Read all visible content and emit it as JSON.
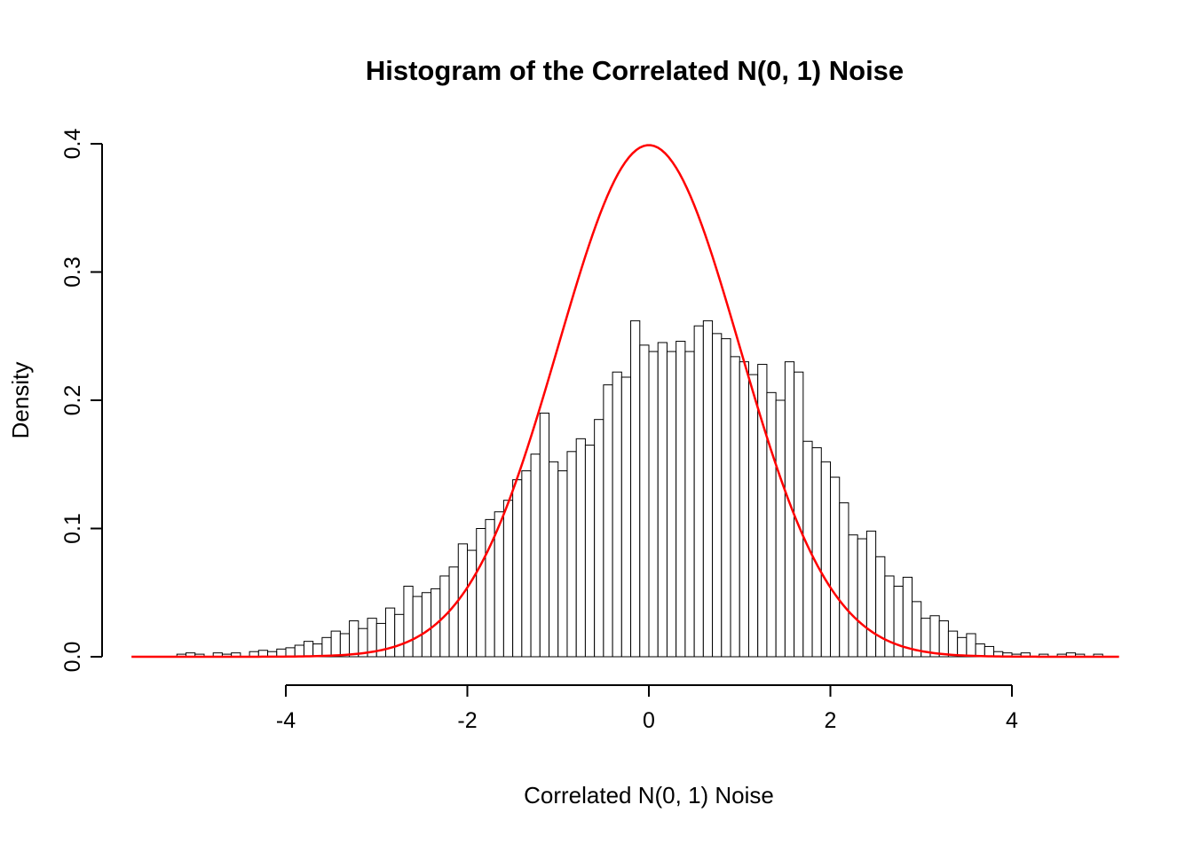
{
  "page": {
    "background_color": "#FFFFFF"
  },
  "chart_data": {
    "type": "bar",
    "subtype": "histogram-with-density-overlay",
    "title": "Histogram of the Correlated N(0, 1) Noise",
    "xlabel": "Correlated N(0, 1) Noise",
    "ylabel": "Density",
    "xlim": [
      -5.5,
      5.5
    ],
    "ylim": [
      0.0,
      0.4
    ],
    "x_ticks": [
      -4,
      -2,
      0,
      2,
      4
    ],
    "x_tick_labels": [
      "-4",
      "-2",
      "0",
      "2",
      "4"
    ],
    "y_ticks": [
      0.0,
      0.1,
      0.2,
      0.3,
      0.4
    ],
    "y_tick_labels": [
      "0.0",
      "0.1",
      "0.2",
      "0.3",
      "0.4"
    ],
    "grid": "off",
    "legend": "none",
    "bar_fill_color": "#FFFFFF",
    "bar_stroke_color": "#000000",
    "bin_width": 0.1,
    "bin_start": -5.2,
    "bin_densities": [
      0.002,
      0.003,
      0.002,
      0.0,
      0.003,
      0.002,
      0.003,
      0.0,
      0.004,
      0.005,
      0.004,
      0.006,
      0.007,
      0.009,
      0.012,
      0.01,
      0.015,
      0.02,
      0.018,
      0.028,
      0.022,
      0.03,
      0.026,
      0.038,
      0.033,
      0.055,
      0.047,
      0.05,
      0.053,
      0.063,
      0.07,
      0.088,
      0.083,
      0.1,
      0.107,
      0.113,
      0.122,
      0.138,
      0.145,
      0.158,
      0.19,
      0.152,
      0.145,
      0.16,
      0.17,
      0.165,
      0.185,
      0.212,
      0.222,
      0.218,
      0.262,
      0.243,
      0.238,
      0.245,
      0.238,
      0.246,
      0.238,
      0.258,
      0.262,
      0.252,
      0.248,
      0.234,
      0.23,
      0.22,
      0.228,
      0.206,
      0.2,
      0.23,
      0.222,
      0.168,
      0.163,
      0.152,
      0.14,
      0.12,
      0.095,
      0.092,
      0.098,
      0.078,
      0.063,
      0.055,
      0.062,
      0.043,
      0.03,
      0.032,
      0.028,
      0.02,
      0.015,
      0.018,
      0.01,
      0.008,
      0.004,
      0.003,
      0.002,
      0.003,
      0.0,
      0.002,
      0.0,
      0.002,
      0.003,
      0.002,
      0.0,
      0.002
    ],
    "overlay_curve": {
      "name": "standard-normal-density",
      "mean": 0,
      "sd": 1,
      "peak_density": 0.3989,
      "color": "#FF0000",
      "x_range": [
        -5.7,
        5.2
      ]
    }
  }
}
